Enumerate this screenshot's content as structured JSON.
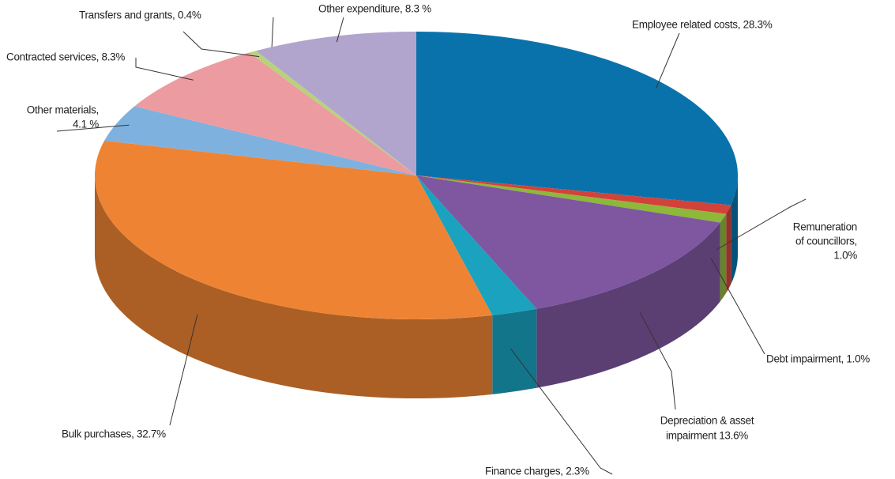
{
  "chart_data": {
    "type": "pie3d",
    "labels": [
      [
        "Employee related costs, 28.3%"
      ],
      [
        "Remuneration",
        "of councillors,",
        "1.0%"
      ],
      [
        "Debt impairment, 1.0%"
      ],
      [
        "Depreciation & asset",
        "impairment 13.6%"
      ],
      [
        "Finance charges, 2.3%"
      ],
      [
        "Bulk purchases, 32.7%"
      ],
      [
        "Other materials,",
        "4.1 %"
      ],
      [
        "Contracted services, 8.3%"
      ],
      [
        "Transfers and grants, 0.4%"
      ],
      [
        "Other expenditure, 8.3 %"
      ]
    ],
    "values": [
      28.3,
      1.0,
      1.0,
      13.6,
      2.3,
      32.7,
      4.1,
      8.3,
      0.4,
      8.3
    ],
    "colors": [
      "#0a72ab",
      "#d3423a",
      "#8db83a",
      "#7e57a0",
      "#1aa2bf",
      "#ee8433",
      "#7fb1df",
      "#ec9ba0",
      "#b8d27c",
      "#b1a4cd"
    ]
  }
}
